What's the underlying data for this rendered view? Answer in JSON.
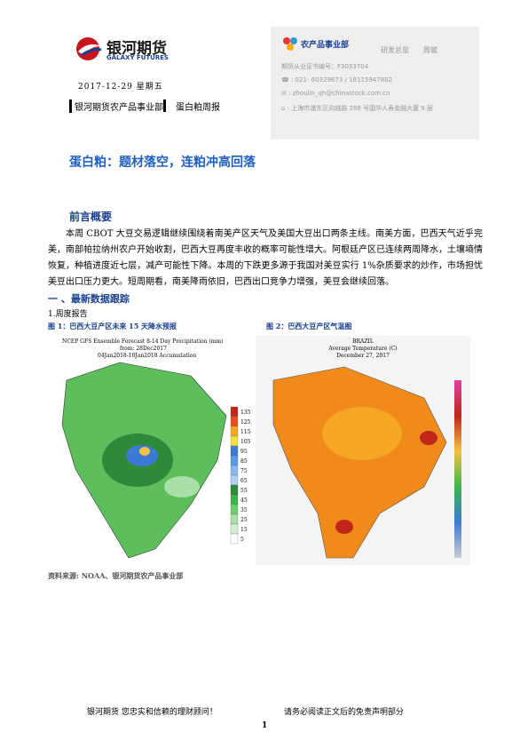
{
  "header": {
    "logo_cn": "银河期货",
    "logo_en": "GALAXY FUTURES",
    "date": "2017-12-29 星期五",
    "dept": "银河期货农产品事业部",
    "report": "蛋白粕周报"
  },
  "contact": {
    "dept": "农产品事业部",
    "role": "研发总监",
    "name": "周毓",
    "cert": "期货从业证书编号：F3033704",
    "phone": "021- 60329673 / 18115947882",
    "email": "zhoulin_qh@chinastock.com.cn",
    "address": "上海市浦东区向城路 288 号国华人寿金融大厦 9 层"
  },
  "title": "蛋白粕：题材落空，连粕冲高回落",
  "summary": {
    "heading": "前言概要",
    "text": "本周 CBOT 大豆交易逻辑继续围绕着南美产区天气及美国大豆出口两条主线。南美方面，巴西天气近乎完美，南部帕拉纳州农户开始收割，巴西大豆再度丰收的概率可能性增大。阿根廷产区已连续两周降水，土壤墒情恢复，种植进度近七层，减产可能性下降。本周的下跌更多源于我国对美豆实行 1%杂质要求的炒作，市场担忧美豆出口压力更大。短周期看，南美降雨依旧，巴西出口竞争力增强，美豆会继续回落。"
  },
  "section": {
    "heading": "一 、最新数据跟踪",
    "subheading": "1.周度报告",
    "fig1": "图 1：巴西大豆产区未来 15 天降水预报",
    "fig2": "图 2：巴西大豆产区气温图",
    "source": "资料来源: NOAA、银河期货农产品事业部"
  },
  "map1": {
    "title": "NCEP GFS Ensemble Forecast 8-14 Day Precipitation (mm)",
    "from": "from: 28Dec2017",
    "range": "04Jan2018-10Jan2018 Accumulation",
    "legend": [
      "135",
      "125",
      "115",
      "105",
      "95",
      "85",
      "75",
      "65",
      "55",
      "45",
      "35",
      "25",
      "15",
      "5"
    ]
  },
  "map2": {
    "title": "BRAZIL",
    "subtitle": "Average Temperature (C)",
    "date": "December 27, 2017"
  },
  "footer": {
    "left": "银河期货  您忠实和信赖的理财顾问！",
    "right": "请务必阅读正文后的免责声明部分",
    "page": "1"
  }
}
